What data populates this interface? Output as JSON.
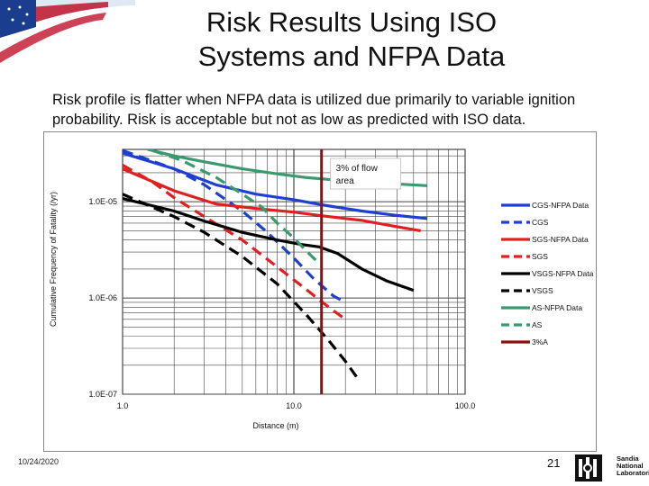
{
  "slide": {
    "title_line1": "Risk Results Using ISO",
    "title_line2": "Systems and NFPA Data",
    "subtitle_line1": "Risk profile is flatter when NFPA data is utilized due primarily to variable ignition",
    "subtitle_line2": "probability.  Risk is acceptable but not as low as predicted with ISO data.",
    "date": "10/24/2020",
    "page_number": "21",
    "logo_lines": [
      "Sandia",
      "National",
      "Laboratories"
    ]
  },
  "colors": {
    "blue": "#1f3fd0",
    "red": "#e02020",
    "black": "#000000",
    "green": "#3a9a6e",
    "darkred": "#8b1010"
  },
  "chart_data": {
    "type": "line",
    "x_scale": "log",
    "y_scale": "log",
    "xlim": [
      1,
      100
    ],
    "ylim": [
      1e-07,
      3.5e-05
    ],
    "xlabel": "Distance (m)",
    "ylabel": "Cumulative Frequency of Fatality (/yr)",
    "x_ticks": [
      {
        "value": 1,
        "label": "1.0"
      },
      {
        "value": 10,
        "label": "10.0"
      },
      {
        "value": 100,
        "label": "100.0"
      }
    ],
    "y_ticks": [
      {
        "value": 1e-05,
        "label": "1.0E-05"
      },
      {
        "value": 1e-06,
        "label": "1.0E-06"
      },
      {
        "value": 1e-07,
        "label": "1.0E-07"
      }
    ],
    "annotation": {
      "text_line1": "3% of flow",
      "text_line2": "area",
      "x": 14.5
    },
    "series": [
      {
        "name": "CGS-NFPA Data",
        "color": "blue",
        "dash": false,
        "points": [
          [
            1.0,
            3.2e-05
          ],
          [
            2.0,
            2.2e-05
          ],
          [
            3.5,
            1.5e-05
          ],
          [
            6.0,
            1.2e-05
          ],
          [
            10.0,
            1.05e-05
          ],
          [
            15.0,
            9.2e-06
          ],
          [
            25.0,
            8e-06
          ],
          [
            40.0,
            7.2e-06
          ],
          [
            60.0,
            6.7e-06
          ]
        ]
      },
      {
        "name": "CGS",
        "color": "blue",
        "dash": true,
        "points": [
          [
            1.0,
            3.4e-05
          ],
          [
            2.0,
            2.2e-05
          ],
          [
            3.0,
            1.5e-05
          ],
          [
            5.0,
            8e-06
          ],
          [
            7.0,
            4.8e-06
          ],
          [
            10.0,
            2.6e-06
          ],
          [
            13.0,
            1.6e-06
          ],
          [
            17.0,
            1.05e-06
          ],
          [
            20.0,
            9e-07
          ]
        ]
      },
      {
        "name": "SGS-NFPA Data",
        "color": "red",
        "dash": false,
        "points": [
          [
            1.0,
            2.2e-05
          ],
          [
            2.0,
            1.3e-05
          ],
          [
            3.5,
            9.5e-06
          ],
          [
            6.0,
            8.5e-06
          ],
          [
            10.0,
            7.8e-06
          ],
          [
            15.0,
            7.1e-06
          ],
          [
            25.0,
            6.4e-06
          ],
          [
            40.0,
            5.5e-06
          ],
          [
            55.0,
            5e-06
          ]
        ]
      },
      {
        "name": "SGS",
        "color": "red",
        "dash": true,
        "points": [
          [
            1.0,
            2.4e-05
          ],
          [
            1.5,
            1.6e-05
          ],
          [
            2.0,
            1.1e-05
          ],
          [
            3.0,
            7e-06
          ],
          [
            5.0,
            4e-06
          ],
          [
            8.0,
            2.1e-06
          ],
          [
            12.0,
            1.2e-06
          ],
          [
            16.0,
            8e-07
          ],
          [
            20.0,
            6e-07
          ]
        ]
      },
      {
        "name": "VSGS-NFPA Data",
        "color": "black",
        "dash": false,
        "points": [
          [
            1.0,
            1.08e-05
          ],
          [
            2.0,
            8e-06
          ],
          [
            3.0,
            6.3e-06
          ],
          [
            5.0,
            4.8e-06
          ],
          [
            8.0,
            4e-06
          ],
          [
            11.0,
            3.6e-06
          ],
          [
            14.0,
            3.4e-06
          ],
          [
            18.0,
            2.9e-06
          ],
          [
            25.0,
            2e-06
          ],
          [
            35.0,
            1.5e-06
          ],
          [
            50.0,
            1.2e-06
          ]
        ]
      },
      {
        "name": "VSGS",
        "color": "black",
        "dash": true,
        "points": [
          [
            1.0,
            1.2e-05
          ],
          [
            2.0,
            7e-06
          ],
          [
            3.0,
            4.8e-06
          ],
          [
            5.0,
            2.7e-06
          ],
          [
            8.0,
            1.4e-06
          ],
          [
            12.0,
            6.5e-07
          ],
          [
            16.0,
            3.6e-07
          ],
          [
            20.0,
            2.2e-07
          ],
          [
            24.0,
            1.4e-07
          ]
        ]
      },
      {
        "name": "AS-NFPA Data",
        "color": "green",
        "dash": false,
        "points": [
          [
            1.4,
            3.5e-05
          ],
          [
            2.0,
            3e-05
          ],
          [
            3.0,
            2.6e-05
          ],
          [
            5.0,
            2.2e-05
          ],
          [
            8.0,
            1.95e-05
          ],
          [
            12.0,
            1.78e-05
          ],
          [
            20.0,
            1.65e-05
          ],
          [
            35.0,
            1.55e-05
          ],
          [
            60.0,
            1.47e-05
          ]
        ]
      },
      {
        "name": "AS",
        "color": "green",
        "dash": true,
        "points": [
          [
            1.5,
            3.4e-05
          ],
          [
            2.2,
            2.7e-05
          ],
          [
            3.5,
            1.8e-05
          ],
          [
            5.0,
            1.2e-05
          ],
          [
            6.5,
            8.8e-06
          ],
          [
            8.0,
            6e-06
          ],
          [
            10.0,
            4.2e-06
          ],
          [
            12.0,
            3e-06
          ],
          [
            14.0,
            2.3e-06
          ]
        ]
      },
      {
        "name": "3%A",
        "color": "darkred",
        "dash": false,
        "points": [
          [
            14.5,
            3.5e-05
          ],
          [
            14.5,
            1e-07
          ]
        ]
      }
    ],
    "legend_position": "right"
  }
}
